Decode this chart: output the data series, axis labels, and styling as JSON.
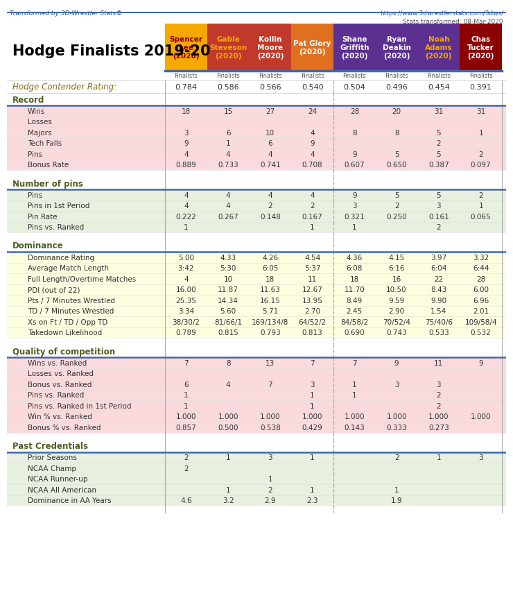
{
  "title": "Hodge Finalists 2019-20",
  "top_left_text": "Transformed by 3D-Wrestler Stats©",
  "top_right_text": "https://www.3dwrestlerstats.com/3dws/",
  "stats_date": "Stats transformed: 08-Mar-2020",
  "wrestlers": [
    {
      "name": "Spencer\nLee\n(2020)",
      "bg": "#F5A800",
      "text": "#8B0000"
    },
    {
      "name": "Gable\nSteveson\n(2020)",
      "bg": "#C0392B",
      "text": "#F5A800"
    },
    {
      "name": "Kollin\nMoore\n(2020)",
      "bg": "#C0392B",
      "text": "#FFFFFF"
    },
    {
      "name": "Pat Glory\n(2020)",
      "bg": "#E07020",
      "text": "#FFFFFF"
    },
    {
      "name": "Shane\nGriffith\n(2020)",
      "bg": "#5B3090",
      "text": "#FFFFFF"
    },
    {
      "name": "Ryan\nDeakin\n(2020)",
      "bg": "#5B3090",
      "text": "#FFFFFF"
    },
    {
      "name": "Noah\nAdams\n(2020)",
      "bg": "#5B3090",
      "text": "#F5A800"
    },
    {
      "name": "Chas\nTucker\n(2020)",
      "bg": "#8B0000",
      "text": "#FFFFFF"
    }
  ],
  "subheader": "Finalists",
  "rating_label": "Hodge Contender Rating:",
  "rating_values": [
    "0.784",
    "0.586",
    "0.566",
    "0.540",
    "0.504",
    "0.496",
    "0.454",
    "0.391"
  ],
  "sections": [
    {
      "name": "Record",
      "bg": "#FADADD",
      "rows": [
        {
          "label": "Wins",
          "values": [
            "18",
            "15",
            "27",
            "24",
            "28",
            "20",
            "31",
            "31"
          ]
        },
        {
          "label": "Losses",
          "values": [
            "",
            "",
            "",
            "",
            "",
            "",
            "",
            ""
          ]
        },
        {
          "label": "Majors",
          "values": [
            "3",
            "6",
            "10",
            "4",
            "8",
            "8",
            "5",
            "1"
          ]
        },
        {
          "label": "Tech Falls",
          "values": [
            "9",
            "1",
            "6",
            "9",
            "",
            "",
            "2",
            ""
          ]
        },
        {
          "label": "Pins",
          "values": [
            "4",
            "4",
            "4",
            "4",
            "9",
            "5",
            "5",
            "2"
          ]
        },
        {
          "label": "Bonus Rate",
          "values": [
            "0.889",
            "0.733",
            "0.741",
            "0.708",
            "0.607",
            "0.650",
            "0.387",
            "0.097"
          ]
        }
      ]
    },
    {
      "name": "Number of pins",
      "bg": "#E8F0E0",
      "rows": [
        {
          "label": "Pins",
          "values": [
            "4",
            "4",
            "4",
            "4",
            "9",
            "5",
            "5",
            "2"
          ]
        },
        {
          "label": "Pins in 1st Period",
          "values": [
            "4",
            "4",
            "2",
            "2",
            "3",
            "2",
            "3",
            "1"
          ]
        },
        {
          "label": "Pin Rate",
          "values": [
            "0.222",
            "0.267",
            "0.148",
            "0.167",
            "0.321",
            "0.250",
            "0.161",
            "0.065"
          ]
        },
        {
          "label": "Pins vs. Ranked",
          "values": [
            "1",
            "",
            "",
            "1",
            "1",
            "",
            "2",
            ""
          ]
        }
      ]
    },
    {
      "name": "Dominance",
      "bg": "#FDFDE0",
      "rows": [
        {
          "label": "Dominance Rating",
          "values": [
            "5.00",
            "4.33",
            "4.26",
            "4.54",
            "4.36",
            "4.15",
            "3.97",
            "3.32"
          ]
        },
        {
          "label": "Average Match Length",
          "values": [
            "3:42",
            "5:30",
            "6:05",
            "5:37",
            "6:08",
            "6:16",
            "6:04",
            "6:44"
          ]
        },
        {
          "label": "Full Length/Overtime Matches",
          "values": [
            "4",
            "10",
            "18",
            "11",
            "18",
            "16",
            "22",
            "28"
          ]
        },
        {
          "label": "PDI (out of 22)",
          "values": [
            "16.00",
            "11.87",
            "11.63",
            "12.67",
            "11.70",
            "10.50",
            "8.43",
            "6.00"
          ]
        },
        {
          "label": "Pts / 7 Minutes Wrestled",
          "values": [
            "25.35",
            "14.34",
            "16.15",
            "13.95",
            "8.49",
            "9.59",
            "9.90",
            "6.96"
          ]
        },
        {
          "label": "TD / 7 Minutes Wrestled",
          "values": [
            "3.34",
            "5.60",
            "5.71",
            "2.70",
            "2.45",
            "2.90",
            "1.54",
            "2.01"
          ]
        },
        {
          "label": "Xs on Ft / TD / Opp TD",
          "values": [
            "38/30/2",
            "81/66/1",
            "169/134/8",
            "64/52/2",
            "84/58/2",
            "70/52/4",
            "75/40/6",
            "109/58/4"
          ]
        },
        {
          "label": "Takedown Likelihood",
          "values": [
            "0.789",
            "0.815",
            "0.793",
            "0.813",
            "0.690",
            "0.743",
            "0.533",
            "0.532"
          ]
        }
      ]
    },
    {
      "name": "Quality of competition",
      "bg": "#FADADD",
      "rows": [
        {
          "label": "Wins vs. Ranked",
          "values": [
            "7",
            "8",
            "13",
            "7",
            "7",
            "9",
            "11",
            "9"
          ]
        },
        {
          "label": "Losses vs. Ranked",
          "values": [
            "",
            "",
            "",
            "",
            "",
            "",
            "",
            ""
          ]
        },
        {
          "label": "Bonus vs. Ranked",
          "values": [
            "6",
            "4",
            "7",
            "3",
            "1",
            "3",
            "3",
            ""
          ]
        },
        {
          "label": "Pins vs. Ranked",
          "values": [
            "1",
            "",
            "",
            "1",
            "1",
            "",
            "2",
            ""
          ]
        },
        {
          "label": "Pins vs. Ranked in 1st Period",
          "values": [
            "1",
            "",
            "",
            "1",
            "",
            "",
            "2",
            ""
          ]
        },
        {
          "label": "Win % vs. Ranked",
          "values": [
            "1.000",
            "1.000",
            "1.000",
            "1.000",
            "1.000",
            "1.000",
            "1.000",
            "1.000"
          ]
        },
        {
          "label": "Bonus % vs. Ranked",
          "values": [
            "0.857",
            "0.500",
            "0.538",
            "0.429",
            "0.143",
            "0.333",
            "0.273",
            ""
          ]
        }
      ]
    },
    {
      "name": "Past Credentials",
      "bg": "#E8F0E0",
      "rows": [
        {
          "label": "Prior Seasons",
          "values": [
            "2",
            "1",
            "3",
            "1",
            "",
            "2",
            "1",
            "3"
          ]
        },
        {
          "label": "NCAA Champ",
          "values": [
            "2",
            "",
            "",
            "",
            "",
            "",
            "",
            ""
          ]
        },
        {
          "label": "NCAA Runner-up",
          "values": [
            "",
            "",
            "1",
            "",
            "",
            "",
            "",
            ""
          ]
        },
        {
          "label": "NCAA All American",
          "values": [
            "",
            "1",
            "2",
            "1",
            "",
            "1",
            "",
            ""
          ]
        },
        {
          "label": "Dominance in AA Years",
          "values": [
            "4.6",
            "3.2",
            "2.9",
            "2.3",
            "",
            "1.9",
            "",
            ""
          ]
        }
      ]
    }
  ],
  "colors": {
    "top_text_left": "#1E5799",
    "top_text_right": "#1E5799",
    "stats_date": "#555555",
    "title": "#000000",
    "rating_label": "#8B6914",
    "section_header": "#4B6020",
    "blue_line": "#4169AA",
    "pipe": "#AAAAAA",
    "dashed": "#AAAAAA",
    "cell_text": "#333333",
    "subheader_text": "#555555",
    "section_header_bg": "#FFFFFF"
  }
}
